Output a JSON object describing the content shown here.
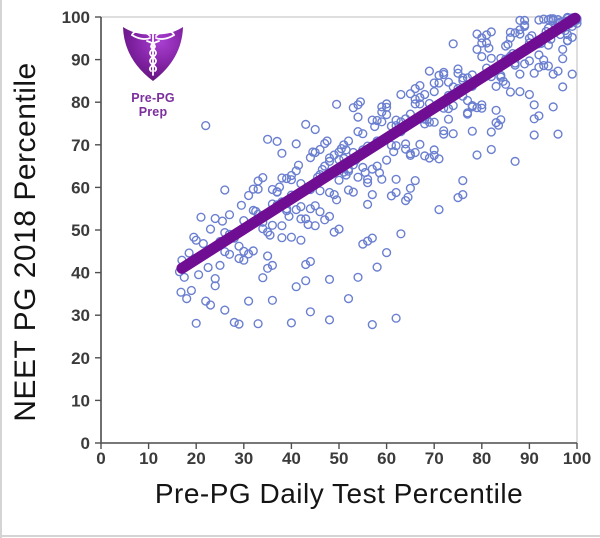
{
  "page": {
    "background": "#ffffff",
    "frame_color": "#d4d4d4"
  },
  "logo": {
    "label": "Pre-PG Prep",
    "label_color": "#7b2e9c",
    "shield_dark": "#4e0d66",
    "shield_mid": "#7d1f9e",
    "shield_light": "#a93fd1",
    "emblem_color": "#ffffff",
    "emblem": "caduceus-icon"
  },
  "chart_data": {
    "type": "scatter",
    "title": "",
    "xlabel": "Pre-PG Daily Test Percentile",
    "ylabel": "NEET PG 2018 Percentile",
    "xlim": [
      0,
      100
    ],
    "ylim": [
      0,
      100
    ],
    "xticks": [
      0,
      10,
      20,
      30,
      40,
      50,
      60,
      70,
      80,
      90,
      100
    ],
    "yticks": [
      0,
      10,
      20,
      30,
      40,
      50,
      60,
      70,
      80,
      90,
      100
    ],
    "grid": false,
    "legend": false,
    "marker": "open-circle",
    "colors": {
      "point": "#6b7fd0",
      "trend": "#6f0d93",
      "axis": "#4f4f4f",
      "plot_border": "#c9c9c9",
      "tick_label": "#3b3b3b",
      "axis_title": "#141414"
    },
    "trendline": {
      "x1": 17,
      "y1": 41,
      "x2": 99.6,
      "y2": 99.7,
      "width": 11
    },
    "points": [
      [
        17,
        42.9
      ],
      [
        19,
        35.8
      ],
      [
        21,
        53
      ],
      [
        23,
        32.4
      ],
      [
        25,
        47.3
      ],
      [
        27,
        53.6
      ],
      [
        29,
        46.2
      ],
      [
        31,
        33.3
      ],
      [
        33,
        59.6
      ],
      [
        35,
        43.9
      ],
      [
        37,
        59
      ],
      [
        39,
        55
      ],
      [
        41,
        70.2
      ],
      [
        43,
        38.1
      ],
      [
        45,
        55.7
      ],
      [
        47,
        70.3
      ],
      [
        49,
        49.5
      ],
      [
        51,
        66.8
      ],
      [
        53,
        58.9
      ],
      [
        55,
        72.6
      ],
      [
        57,
        58.3
      ],
      [
        59,
        77.7
      ],
      [
        61,
        69.9
      ],
      [
        63,
        49.1
      ],
      [
        65,
        77.2
      ],
      [
        67,
        70.1
      ],
      [
        69,
        87.3
      ],
      [
        71,
        66.7
      ],
      [
        73,
        81.6
      ],
      [
        75,
        87.8
      ],
      [
        77,
        80.4
      ],
      [
        79,
        67.6
      ],
      [
        81,
        93.9
      ],
      [
        83,
        78.1
      ],
      [
        85,
        93.2
      ],
      [
        87,
        89.2
      ],
      [
        89,
        99.2
      ],
      [
        91,
        72.3
      ],
      [
        93,
        89.9
      ],
      [
        95,
        99.6
      ],
      [
        97,
        83.6
      ],
      [
        99,
        99.8
      ],
      [
        18,
        33.9
      ],
      [
        20,
        47.6
      ],
      [
        22,
        33.3
      ],
      [
        24,
        52.7
      ],
      [
        26,
        44.9
      ],
      [
        28,
        28.3
      ],
      [
        30,
        52.2
      ],
      [
        32,
        45.1
      ],
      [
        34,
        62.3
      ],
      [
        36,
        41.7
      ],
      [
        38,
        56.6
      ],
      [
        40,
        62.8
      ],
      [
        42,
        55.5
      ],
      [
        44,
        42.6
      ],
      [
        46,
        68.9
      ],
      [
        48,
        53.2
      ],
      [
        50,
        68.3
      ],
      [
        52,
        64.3
      ],
      [
        54,
        79.4
      ],
      [
        56,
        47.4
      ],
      [
        58,
        65
      ],
      [
        60,
        79.6
      ],
      [
        62,
        58.8
      ],
      [
        64,
        76.1
      ],
      [
        66,
        68.2
      ],
      [
        68,
        81.8
      ],
      [
        70,
        67.5
      ],
      [
        72,
        87
      ],
      [
        74,
        79.2
      ],
      [
        76,
        58.3
      ],
      [
        78,
        86.4
      ],
      [
        80,
        79.4
      ],
      [
        82,
        96.5
      ],
      [
        84,
        75.9
      ],
      [
        86,
        90.8
      ],
      [
        88,
        97
      ],
      [
        90,
        89.7
      ],
      [
        92,
        76.8
      ],
      [
        94,
        99.4
      ],
      [
        96,
        87.3
      ],
      [
        98,
        99.1
      ],
      [
        100,
        98.5
      ],
      [
        26,
        59.4
      ],
      [
        29,
        27.9
      ],
      [
        30,
        45
      ],
      [
        32,
        59.6
      ],
      [
        34,
        38.8
      ],
      [
        36,
        56.1
      ],
      [
        38,
        48.2
      ],
      [
        40,
        61.8
      ],
      [
        42,
        47.6
      ],
      [
        44,
        67
      ],
      [
        46,
        59.2
      ],
      [
        48,
        38.4
      ],
      [
        50,
        66.5
      ],
      [
        52,
        59.4
      ],
      [
        54,
        76.5
      ],
      [
        56,
        56
      ],
      [
        58,
        70.9
      ],
      [
        60,
        77.1
      ],
      [
        62,
        69.8
      ],
      [
        64,
        56.9
      ],
      [
        66,
        83.2
      ],
      [
        68,
        67.4
      ],
      [
        70,
        82.5
      ],
      [
        72,
        78.6
      ],
      [
        74,
        93.7
      ],
      [
        76,
        61.6
      ],
      [
        78,
        79.2
      ],
      [
        80,
        93.9
      ],
      [
        82,
        73
      ],
      [
        84,
        90.3
      ],
      [
        86,
        82.4
      ],
      [
        88,
        96
      ],
      [
        90,
        81.8
      ],
      [
        92,
        99.3
      ],
      [
        94,
        93.4
      ],
      [
        96,
        72.5
      ],
      [
        98,
        99.7
      ],
      [
        31,
        44.4
      ],
      [
        33,
        61.5
      ],
      [
        35,
        41
      ],
      [
        37,
        55.9
      ],
      [
        39,
        62.1
      ],
      [
        41,
        54.8
      ],
      [
        43,
        41.9
      ],
      [
        45,
        68.2
      ],
      [
        47,
        52.4
      ],
      [
        49,
        67.6
      ],
      [
        51,
        63.6
      ],
      [
        53,
        78.7
      ],
      [
        55,
        46.7
      ],
      [
        57,
        64.3
      ],
      [
        59,
        78.9
      ],
      [
        61,
        58
      ],
      [
        63,
        75.4
      ],
      [
        65,
        67.5
      ],
      [
        67,
        81.1
      ],
      [
        69,
        66.9
      ],
      [
        71,
        86.3
      ],
      [
        73,
        78.5
      ],
      [
        75,
        57.6
      ],
      [
        77,
        85.7
      ],
      [
        79,
        78.7
      ],
      [
        81,
        95.8
      ],
      [
        83,
        75.2
      ],
      [
        85,
        90.1
      ],
      [
        87,
        96.3
      ],
      [
        89,
        89
      ],
      [
        91,
        76.1
      ],
      [
        93,
        99.5
      ],
      [
        95,
        86.6
      ],
      [
        97,
        98.9
      ],
      [
        99,
        97.8
      ],
      [
        38,
        68
      ],
      [
        41,
        36.7
      ],
      [
        44,
        55
      ],
      [
        47.5,
        70.9
      ],
      [
        50,
        50.2
      ],
      [
        53,
        68.2
      ],
      [
        56,
        61.1
      ],
      [
        59,
        75.4
      ],
      [
        62,
        61.9
      ],
      [
        65,
        82
      ],
      [
        68,
        74.9
      ],
      [
        71,
        54.8
      ],
      [
        74,
        83.6
      ],
      [
        77,
        77.2
      ],
      [
        80,
        95.1
      ],
      [
        83.5,
        74.6
      ],
      [
        86.5,
        91.4
      ],
      [
        89,
        97.8
      ],
      [
        92,
        91.1
      ],
      [
        95,
        78.9
      ],
      [
        98,
        99.9
      ],
      [
        45,
        51
      ],
      [
        48,
        66.9
      ],
      [
        51.5,
        62.9
      ],
      [
        54.5,
        80.1
      ],
      [
        57,
        48.1
      ],
      [
        60,
        66.4
      ],
      [
        63,
        81.8
      ],
      [
        66,
        61.6
      ],
      [
        69,
        79.7
      ],
      [
        72,
        72.5
      ],
      [
        75,
        86.8
      ],
      [
        78,
        73.2
      ],
      [
        81.5,
        92.7
      ],
      [
        84,
        86.3
      ],
      [
        87,
        66.1
      ],
      [
        90,
        95
      ],
      [
        93,
        88.6
      ],
      [
        96,
        99.4
      ],
      [
        99,
        86.6
      ],
      [
        55,
        68.8
      ],
      [
        58,
        75.7
      ],
      [
        61.5,
        68.4
      ],
      [
        64.5,
        57.7
      ],
      [
        67,
        83.9
      ],
      [
        70,
        68.8
      ],
      [
        73,
        84.7
      ],
      [
        76,
        81.4
      ],
      [
        79,
        96
      ],
      [
        82,
        68.9
      ],
      [
        85,
        84.2
      ],
      [
        88,
        99.2
      ],
      [
        91,
        79.4
      ],
      [
        94,
        97.4
      ],
      [
        97,
        90.2
      ],
      [
        16.5,
        40.2
      ],
      [
        16.8,
        35.4
      ],
      [
        17.5,
        38.9
      ],
      [
        18.5,
        44.6
      ],
      [
        19.5,
        48.3
      ],
      [
        20.5,
        39.5
      ],
      [
        21.5,
        46.8
      ],
      [
        22,
        74.5
      ],
      [
        22.5,
        41.2
      ],
      [
        24,
        38.6
      ],
      [
        25.5,
        52.1
      ],
      [
        27,
        44.3
      ],
      [
        29.5,
        55.8
      ],
      [
        20,
        28.1
      ],
      [
        26,
        31.2
      ],
      [
        33,
        28
      ],
      [
        36,
        33.5
      ],
      [
        40,
        28.2
      ],
      [
        44,
        30.8
      ],
      [
        48,
        28.9
      ],
      [
        52,
        33.9
      ],
      [
        57,
        27.8
      ],
      [
        62,
        29.3
      ],
      [
        58,
        41.3
      ],
      [
        54,
        38.9
      ],
      [
        60,
        44.7
      ],
      [
        65,
        59.8
      ],
      [
        35,
        71.3
      ],
      [
        37,
        70.8
      ],
      [
        43,
        74.8
      ],
      [
        45,
        73.6
      ],
      [
        49.5,
        79.5
      ],
      [
        98.5,
        98.4
      ],
      [
        99.5,
        99
      ],
      [
        97.5,
        96.8
      ],
      [
        96.5,
        95.9
      ],
      [
        95.5,
        97.7
      ],
      [
        94.5,
        94.8
      ],
      [
        93.5,
        96.6
      ],
      [
        92.5,
        93.8
      ],
      [
        100,
        99.6
      ],
      [
        99,
        95.2
      ],
      [
        98,
        94.5
      ],
      [
        33,
        53.7
      ],
      [
        35,
        49.5
      ],
      [
        37,
        58.9
      ],
      [
        39,
        54.5
      ],
      [
        41,
        63.9
      ],
      [
        43,
        52.6
      ],
      [
        45,
        61.2
      ],
      [
        47,
        65
      ],
      [
        49,
        58.3
      ],
      [
        51,
        70
      ],
      [
        53,
        65.3
      ],
      [
        55,
        64.7
      ],
      [
        57,
        75.8
      ],
      [
        59,
        61.9
      ],
      [
        61,
        74.4
      ],
      [
        63,
        73.1
      ],
      [
        65,
        67.9
      ],
      [
        67,
        79.6
      ],
      [
        69,
        75.3
      ],
      [
        71,
        84.5
      ],
      [
        73,
        76
      ],
      [
        75,
        83.2
      ],
      [
        77,
        77.5
      ],
      [
        79,
        92.4
      ],
      [
        81,
        88
      ],
      [
        83,
        83.7
      ],
      [
        85.5,
        93.6
      ],
      [
        87,
        88.7
      ],
      [
        89,
        98.1
      ],
      [
        91,
        86.8
      ],
      [
        93,
        95.4
      ],
      [
        95,
        99.2
      ],
      [
        97,
        92.4
      ],
      [
        98.5,
        99.3
      ],
      [
        34,
        51.8
      ],
      [
        36,
        51.1
      ],
      [
        38,
        62.2
      ],
      [
        40,
        48.3
      ],
      [
        42,
        60.9
      ],
      [
        44,
        59.5
      ],
      [
        46,
        54.3
      ],
      [
        48,
        66.1
      ],
      [
        50,
        61.7
      ],
      [
        52,
        70.9
      ],
      [
        54,
        62.4
      ],
      [
        56,
        69.7
      ],
      [
        58.5,
        63.4
      ],
      [
        60,
        78.8
      ],
      [
        62,
        74.5
      ],
      [
        64,
        70.2
      ],
      [
        66,
        79.6
      ],
      [
        68.5,
        75.9
      ],
      [
        70,
        84.5
      ],
      [
        72,
        73.3
      ],
      [
        74,
        81.9
      ],
      [
        76,
        85.7
      ],
      [
        78,
        78.9
      ],
      [
        80,
        90.7
      ],
      [
        82,
        86
      ],
      [
        84.5,
        84.9
      ],
      [
        86,
        96.4
      ],
      [
        88,
        82.5
      ],
      [
        90.5,
        95.6
      ],
      [
        92,
        93.7
      ],
      [
        94,
        88.5
      ],
      [
        96.5,
        98.8
      ],
      [
        98,
        95.9
      ],
      [
        23,
        50.2
      ],
      [
        25,
        41.7
      ],
      [
        27,
        49
      ],
      [
        29,
        43.3
      ],
      [
        31,
        58.1
      ],
      [
        32.5,
        54.4
      ],
      [
        35.5,
        48.8
      ],
      [
        37.5,
        60.1
      ],
      [
        39.5,
        53.2
      ],
      [
        41.5,
        65.2
      ],
      [
        43.5,
        51.3
      ],
      [
        45.5,
        62.4
      ],
      [
        46.5,
        64.2
      ],
      [
        49.5,
        57.1
      ],
      [
        51.5,
        68.8
      ],
      [
        53.5,
        66.4
      ],
      [
        55.5,
        63.5
      ],
      [
        57.5,
        74.3
      ],
      [
        24,
        36.9
      ],
      [
        26,
        49.4
      ],
      [
        28,
        48.1
      ],
      [
        30,
        42.9
      ],
      [
        32,
        54.6
      ],
      [
        34,
        50.3
      ],
      [
        36,
        59.5
      ],
      [
        38,
        51
      ],
      [
        40,
        58.2
      ],
      [
        42,
        52.6
      ],
      [
        44.5,
        68.3
      ],
      [
        46,
        63
      ],
      [
        48,
        58.8
      ],
      [
        50.5,
        69.1
      ],
      [
        52,
        63.8
      ],
      [
        54,
        73.1
      ],
      [
        56,
        61.9
      ],
      [
        58,
        70.5
      ],
      [
        62,
        75.8
      ],
      [
        64,
        69
      ],
      [
        66,
        80.7
      ],
      [
        68,
        76
      ],
      [
        70,
        75.3
      ],
      [
        72,
        86.5
      ],
      [
        74,
        72.6
      ],
      [
        76,
        85.1
      ],
      [
        78,
        83.7
      ],
      [
        80,
        78.6
      ],
      [
        82,
        90.3
      ],
      [
        84,
        85.9
      ],
      [
        86,
        95.1
      ],
      [
        88,
        86.6
      ],
      [
        90,
        93.9
      ],
      [
        92,
        88.2
      ],
      [
        94.5,
        99.6
      ],
      [
        96,
        98.6
      ],
      [
        98,
        94.4
      ],
      [
        100,
        99.3
      ]
    ]
  }
}
